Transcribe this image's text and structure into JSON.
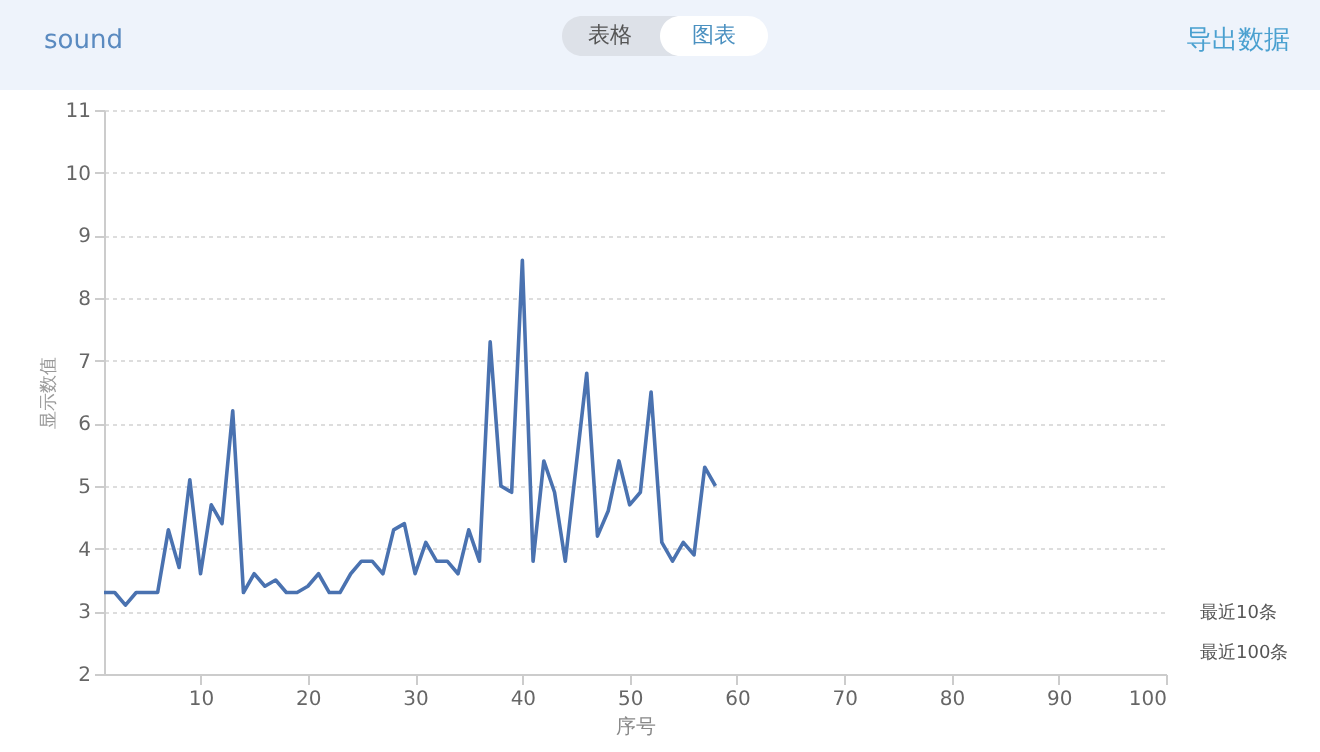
{
  "chart_data": {
    "type": "line",
    "title": "sound",
    "xlabel": "序号",
    "ylabel": "显示数值",
    "x": [
      1,
      2,
      3,
      4,
      5,
      6,
      7,
      8,
      9,
      10,
      11,
      12,
      13,
      14,
      15,
      16,
      17,
      18,
      19,
      20,
      21,
      22,
      23,
      24,
      25,
      26,
      27,
      28,
      29,
      30,
      31,
      32,
      33,
      34,
      35,
      36,
      37,
      38,
      39,
      40,
      41,
      42,
      43,
      44,
      45,
      46,
      47,
      48,
      49,
      50,
      51,
      52,
      53,
      54,
      55,
      56,
      57,
      58
    ],
    "series": [
      {
        "color": "#4a72b0",
        "values": [
          3.3,
          3.3,
          3.1,
          3.3,
          3.3,
          3.3,
          4.3,
          3.7,
          5.1,
          3.6,
          4.7,
          4.4,
          6.2,
          3.3,
          3.6,
          3.4,
          3.5,
          3.3,
          3.3,
          3.4,
          3.6,
          3.3,
          3.3,
          3.6,
          3.8,
          3.8,
          3.6,
          4.3,
          4.4,
          3.6,
          4.1,
          3.8,
          3.8,
          3.6,
          4.3,
          3.8,
          7.3,
          5.0,
          4.9,
          8.6,
          3.8,
          5.4,
          4.9,
          3.8,
          5.3,
          6.8,
          4.2,
          4.6,
          5.4,
          4.7,
          4.9,
          6.5,
          4.1,
          3.8,
          4.1,
          3.9,
          5.3,
          5.0
        ]
      }
    ],
    "xlim": [
      1,
      100
    ],
    "xticks": [
      10,
      20,
      30,
      40,
      50,
      60,
      70,
      80,
      90,
      100
    ],
    "ylim": [
      2,
      11
    ],
    "yticks": [
      2,
      3,
      4,
      5,
      6,
      7,
      8,
      9,
      10,
      11
    ],
    "grid": "y",
    "marker": "none",
    "line_style": "solid",
    "annotations": [
      "表格",
      "图表",
      "导出数据",
      "最近10条",
      "最近100条"
    ]
  }
}
